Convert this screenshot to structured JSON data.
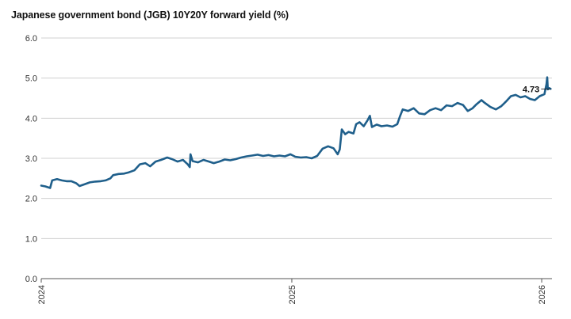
{
  "chart_data": {
    "type": "line",
    "title": "Japanese government bond (JGB) 10Y20Y forward yield (%)",
    "xlabel": "",
    "ylabel": "",
    "ylim": [
      0,
      6
    ],
    "yticks": [
      "0.0",
      "1.0",
      "2.0",
      "3.0",
      "4.0",
      "5.0",
      "6.0"
    ],
    "xlim": [
      "2024-01-01",
      "2026-01-16"
    ],
    "xticks": [
      {
        "date": "2024-01-01",
        "label": "2024"
      },
      {
        "date": "2025-01-01",
        "label": "2025"
      },
      {
        "date": "2026-01-01",
        "label": "2026"
      }
    ],
    "grid": "horizontal",
    "line_color": "#1f5f8b",
    "annotation": {
      "date": "2026-01-14",
      "value": 4.73,
      "label": "4.73"
    },
    "series": [
      {
        "values": [
          [
            "2024-01-01",
            2.32
          ],
          [
            "2024-01-07",
            2.3
          ],
          [
            "2024-01-14",
            2.26
          ],
          [
            "2024-01-17",
            2.45
          ],
          [
            "2024-01-24",
            2.48
          ],
          [
            "2024-01-31",
            2.45
          ],
          [
            "2024-02-07",
            2.43
          ],
          [
            "2024-02-14",
            2.43
          ],
          [
            "2024-02-21",
            2.38
          ],
          [
            "2024-02-26",
            2.31
          ],
          [
            "2024-03-04",
            2.35
          ],
          [
            "2024-03-12",
            2.4
          ],
          [
            "2024-03-20",
            2.42
          ],
          [
            "2024-03-28",
            2.43
          ],
          [
            "2024-04-04",
            2.45
          ],
          [
            "2024-04-11",
            2.5
          ],
          [
            "2024-04-15",
            2.58
          ],
          [
            "2024-04-23",
            2.61
          ],
          [
            "2024-05-01",
            2.62
          ],
          [
            "2024-05-08",
            2.65
          ],
          [
            "2024-05-16",
            2.7
          ],
          [
            "2024-05-24",
            2.85
          ],
          [
            "2024-06-01",
            2.88
          ],
          [
            "2024-06-08",
            2.8
          ],
          [
            "2024-06-16",
            2.92
          ],
          [
            "2024-06-24",
            2.96
          ],
          [
            "2024-07-03",
            3.02
          ],
          [
            "2024-07-10",
            2.98
          ],
          [
            "2024-07-18",
            2.92
          ],
          [
            "2024-07-26",
            2.96
          ],
          [
            "2024-08-02",
            2.85
          ],
          [
            "2024-08-05",
            2.78
          ],
          [
            "2024-08-06",
            3.1
          ],
          [
            "2024-08-09",
            2.93
          ],
          [
            "2024-08-17",
            2.9
          ],
          [
            "2024-08-25",
            2.96
          ],
          [
            "2024-09-02",
            2.92
          ],
          [
            "2024-09-09",
            2.88
          ],
          [
            "2024-09-17",
            2.92
          ],
          [
            "2024-09-25",
            2.97
          ],
          [
            "2024-10-03",
            2.95
          ],
          [
            "2024-10-11",
            2.98
          ],
          [
            "2024-10-19",
            3.02
          ],
          [
            "2024-10-27",
            3.05
          ],
          [
            "2024-11-04",
            3.07
          ],
          [
            "2024-11-12",
            3.09
          ],
          [
            "2024-11-20",
            3.06
          ],
          [
            "2024-11-28",
            3.08
          ],
          [
            "2024-12-06",
            3.05
          ],
          [
            "2024-12-14",
            3.07
          ],
          [
            "2024-12-22",
            3.05
          ],
          [
            "2024-12-30",
            3.1
          ],
          [
            "2025-01-06",
            3.04
          ],
          [
            "2025-01-14",
            3.02
          ],
          [
            "2025-01-22",
            3.03
          ],
          [
            "2025-01-30",
            3.0
          ],
          [
            "2025-02-07",
            3.06
          ],
          [
            "2025-02-15",
            3.24
          ],
          [
            "2025-02-23",
            3.3
          ],
          [
            "2025-03-03",
            3.25
          ],
          [
            "2025-03-09",
            3.1
          ],
          [
            "2025-03-12",
            3.22
          ],
          [
            "2025-03-15",
            3.72
          ],
          [
            "2025-03-20",
            3.6
          ],
          [
            "2025-03-25",
            3.66
          ],
          [
            "2025-04-01",
            3.62
          ],
          [
            "2025-04-05",
            3.85
          ],
          [
            "2025-04-10",
            3.9
          ],
          [
            "2025-04-16",
            3.8
          ],
          [
            "2025-04-22",
            3.96
          ],
          [
            "2025-04-25",
            4.06
          ],
          [
            "2025-04-28",
            3.78
          ],
          [
            "2025-05-05",
            3.84
          ],
          [
            "2025-05-12",
            3.8
          ],
          [
            "2025-05-20",
            3.82
          ],
          [
            "2025-05-28",
            3.79
          ],
          [
            "2025-06-04",
            3.85
          ],
          [
            "2025-06-08",
            4.05
          ],
          [
            "2025-06-12",
            4.22
          ],
          [
            "2025-06-20",
            4.18
          ],
          [
            "2025-06-28",
            4.25
          ],
          [
            "2025-07-06",
            4.12
          ],
          [
            "2025-07-14",
            4.1
          ],
          [
            "2025-07-22",
            4.2
          ],
          [
            "2025-07-30",
            4.25
          ],
          [
            "2025-08-07",
            4.2
          ],
          [
            "2025-08-15",
            4.32
          ],
          [
            "2025-08-23",
            4.3
          ],
          [
            "2025-08-31",
            4.38
          ],
          [
            "2025-09-08",
            4.33
          ],
          [
            "2025-09-15",
            4.18
          ],
          [
            "2025-09-22",
            4.25
          ],
          [
            "2025-09-28",
            4.35
          ],
          [
            "2025-10-05",
            4.45
          ],
          [
            "2025-10-10",
            4.38
          ],
          [
            "2025-10-18",
            4.28
          ],
          [
            "2025-10-26",
            4.22
          ],
          [
            "2025-11-03",
            4.3
          ],
          [
            "2025-11-10",
            4.42
          ],
          [
            "2025-11-17",
            4.55
          ],
          [
            "2025-11-24",
            4.58
          ],
          [
            "2025-12-01",
            4.52
          ],
          [
            "2025-12-08",
            4.55
          ],
          [
            "2025-12-15",
            4.48
          ],
          [
            "2025-12-22",
            4.45
          ],
          [
            "2025-12-29",
            4.55
          ],
          [
            "2026-01-05",
            4.6
          ],
          [
            "2026-01-08",
            4.85
          ],
          [
            "2026-01-09",
            5.02
          ],
          [
            "2026-01-10",
            4.72
          ],
          [
            "2026-01-12",
            4.75
          ],
          [
            "2026-01-14",
            4.73
          ]
        ]
      }
    ]
  }
}
